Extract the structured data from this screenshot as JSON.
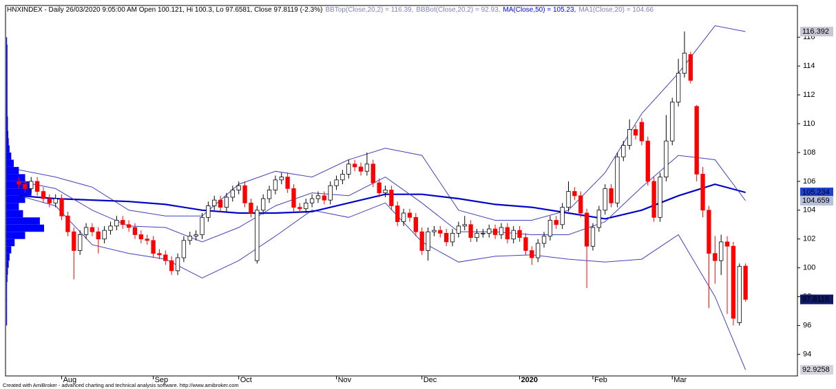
{
  "chart_data": {
    "type": "candlestick",
    "title": "HNXINDEX - Daily 26/03/2020 9:05:00 AM Open 100.121, Hi 100.3, Lo 97.6581, Close 97.8119 (-2.3%)",
    "footer": "Created with AmiBroker - advanced charting and technical analysis software. http://www.amibroker.com",
    "up_color": "#ffffff",
    "down_color": "#ff0000",
    "outline_color": "#000000",
    "open": [
      106.0,
      105.8,
      105.5,
      106.0,
      105.3,
      104.8,
      104.5,
      104.8,
      103.6,
      102.5,
      101.2,
      102.3,
      102.8,
      102.5,
      102.0,
      102.6,
      102.9,
      103.3,
      103.0,
      102.8,
      102.3,
      102.0,
      101.9,
      101.0,
      100.9,
      100.5,
      99.8,
      100.7,
      101.9,
      102.2,
      102.3,
      103.5,
      104.3,
      104.7,
      104.2,
      104.9,
      105.4,
      105.7,
      104.5,
      100.5,
      104.0,
      104.8,
      105.4,
      106.1,
      106.3,
      105.5,
      104.2,
      104.1,
      104.5,
      104.8,
      105.0,
      104.7,
      105.7,
      106.1,
      106.5,
      107.2,
      107.0,
      106.7,
      107.2,
      105.9,
      105.2,
      105.4,
      104.3,
      103.2,
      103.8,
      103.5,
      102.5,
      101.2,
      102.5,
      102.6,
      102.4,
      101.8,
      102.4,
      102.9,
      103.0,
      102.1,
      102.4,
      102.4,
      102.7,
      102.3,
      102.8,
      102.0,
      102.6,
      102.1,
      101.2,
      100.7,
      101.7,
      102.2,
      103.3,
      103.0,
      104.2,
      105.3,
      105.0,
      103.8,
      101.5,
      102.8,
      104.0,
      105.5,
      104.5,
      107.7,
      108.5,
      109.6,
      110.1,
      108.8,
      106.0,
      103.5,
      106.3,
      108.8,
      111.5,
      113.5,
      114.8,
      111.2,
      106.5,
      104.0,
      101.0,
      100.5,
      101.8,
      101.5,
      96.2,
      100.121
    ],
    "high": [
      106.3,
      106.1,
      106.3,
      106.3,
      105.6,
      105.1,
      105.1,
      105.1,
      103.9,
      102.8,
      102.6,
      103.1,
      103.1,
      102.8,
      102.9,
      103.2,
      103.6,
      103.6,
      103.3,
      103.1,
      102.6,
      102.3,
      102.2,
      101.3,
      101.2,
      100.8,
      101.0,
      102.2,
      102.5,
      102.6,
      103.8,
      104.6,
      105.0,
      105.0,
      105.2,
      105.7,
      106.0,
      106.0,
      104.8,
      104.3,
      105.1,
      105.7,
      106.4,
      106.6,
      106.6,
      105.8,
      104.5,
      104.8,
      105.1,
      105.3,
      105.3,
      106.0,
      106.4,
      106.8,
      107.5,
      107.5,
      107.3,
      108.0,
      107.5,
      106.2,
      105.7,
      105.7,
      104.6,
      104.1,
      104.1,
      103.8,
      102.8,
      102.8,
      102.9,
      102.9,
      102.7,
      102.7,
      103.2,
      103.6,
      103.3,
      102.7,
      102.7,
      103.0,
      103.0,
      103.1,
      103.1,
      102.9,
      102.9,
      102.4,
      101.5,
      102.0,
      102.5,
      103.6,
      103.6,
      104.5,
      106.0,
      105.6,
      105.3,
      104.1,
      103.1,
      104.3,
      105.8,
      105.8,
      108.0,
      108.8,
      110.3,
      109.9,
      110.4,
      109.1,
      106.3,
      106.6,
      110.6,
      111.8,
      114.5,
      116.4,
      115.0,
      111.3,
      107.0,
      104.3,
      102.2,
      102.3,
      102.2,
      101.8,
      100.3,
      100.3
    ],
    "low": [
      105.5,
      105.2,
      105.2,
      105.0,
      104.5,
      104.2,
      104.2,
      103.3,
      102.2,
      99.2,
      100.9,
      102.0,
      102.2,
      101.0,
      101.7,
      102.3,
      102.6,
      102.7,
      102.5,
      102.0,
      101.7,
      101.6,
      100.7,
      100.6,
      100.2,
      99.5,
      99.5,
      100.4,
      101.6,
      101.9,
      102.0,
      103.2,
      104.0,
      103.9,
      103.9,
      104.6,
      105.1,
      104.2,
      103.5,
      100.3,
      103.7,
      104.5,
      105.1,
      105.8,
      105.2,
      103.9,
      103.8,
      103.8,
      104.2,
      104.5,
      104.4,
      104.4,
      105.4,
      105.8,
      106.2,
      106.7,
      106.4,
      106.4,
      105.6,
      104.9,
      104.9,
      104.0,
      102.9,
      102.9,
      103.2,
      102.2,
      100.9,
      100.5,
      102.2,
      102.1,
      101.5,
      101.5,
      102.1,
      102.6,
      101.8,
      101.8,
      102.1,
      102.1,
      102.0,
      102.0,
      101.7,
      101.7,
      101.8,
      100.9,
      100.2,
      100.4,
      101.4,
      101.9,
      102.7,
      102.7,
      103.9,
      104.7,
      103.5,
      98.6,
      101.2,
      102.5,
      103.7,
      104.2,
      104.2,
      107.4,
      108.2,
      108.9,
      108.5,
      105.7,
      103.2,
      103.2,
      106.0,
      108.5,
      111.2,
      113.2,
      112.8,
      106.0,
      103.5,
      97.2,
      98.9,
      99.5,
      96.8,
      96.0,
      96.0,
      97.6581
    ],
    "close": [
      105.8,
      105.5,
      106.0,
      105.3,
      104.8,
      104.5,
      104.8,
      103.6,
      102.5,
      101.2,
      102.3,
      102.8,
      102.5,
      102.0,
      102.6,
      102.9,
      103.3,
      103.0,
      102.8,
      102.3,
      102.0,
      101.9,
      101.0,
      100.9,
      100.5,
      99.8,
      100.7,
      101.9,
      102.2,
      102.3,
      103.5,
      104.3,
      104.7,
      104.2,
      104.9,
      105.4,
      105.7,
      104.5,
      103.8,
      104.0,
      104.8,
      105.4,
      106.1,
      106.3,
      105.5,
      104.2,
      104.1,
      104.5,
      104.8,
      105.0,
      104.7,
      105.7,
      106.1,
      106.5,
      107.2,
      107.0,
      106.7,
      107.2,
      105.9,
      105.2,
      105.4,
      104.3,
      103.2,
      103.8,
      103.5,
      102.5,
      101.2,
      102.5,
      102.6,
      102.4,
      101.8,
      102.4,
      102.9,
      103.0,
      102.1,
      102.4,
      102.4,
      102.7,
      102.3,
      102.8,
      102.0,
      102.6,
      102.1,
      101.2,
      100.7,
      101.7,
      102.2,
      103.3,
      103.0,
      104.2,
      105.3,
      105.0,
      103.8,
      101.5,
      102.8,
      104.0,
      105.5,
      104.5,
      107.7,
      108.5,
      109.6,
      109.2,
      108.8,
      106.0,
      103.5,
      106.3,
      108.8,
      111.5,
      113.5,
      114.9,
      113.0,
      106.5,
      104.0,
      101.0,
      100.5,
      101.8,
      101.5,
      96.5,
      100.1,
      97.8119
    ],
    "line_x": [
      0,
      6,
      12,
      18,
      24,
      30,
      36,
      42,
      48,
      54,
      60,
      66,
      72,
      78,
      84,
      90,
      96,
      102,
      108,
      114,
      119
    ],
    "series": [
      {
        "name": "BBTop(Close,20,2) = 116.39,",
        "color": "#8080c0",
        "line_color": "#4040c0",
        "width": 1,
        "values": [
          106.8,
          106.3,
          105.6,
          104.0,
          103.6,
          103.6,
          105.8,
          106.7,
          106.3,
          107.5,
          108.3,
          107.8,
          104.0,
          103.3,
          103.3,
          104.0,
          106.6,
          110.7,
          113.5,
          116.8,
          116.39
        ]
      },
      {
        "name": "BBBot(Close,20,2) = 92.93,",
        "color": "#8080c0",
        "line_color": "#4040c0",
        "width": 1,
        "values": [
          105.0,
          104.3,
          101.6,
          101.0,
          100.6,
          99.3,
          100.5,
          102.2,
          104.0,
          103.5,
          104.5,
          101.8,
          100.4,
          100.8,
          100.9,
          100.6,
          100.4,
          100.6,
          102.3,
          98.0,
          92.93
        ]
      },
      {
        "name": "MA(Close,50) = 105.23,",
        "color": "#0000ff",
        "line_color": "#0000c8",
        "width": 2.2,
        "values": [
          105.0,
          104.8,
          104.7,
          104.6,
          104.4,
          104.0,
          103.8,
          103.8,
          103.9,
          104.5,
          105.1,
          105.1,
          104.8,
          104.4,
          104.2,
          103.8,
          103.4,
          104.0,
          105.0,
          105.8,
          105.23
        ]
      },
      {
        "name": "MA1(Close,20) = 104.66",
        "color": "#8080c0",
        "line_color": "#4040c0",
        "width": 1,
        "values": [
          106.0,
          105.5,
          104.0,
          102.9,
          102.8,
          101.8,
          102.8,
          104.3,
          105.2,
          105.0,
          106.3,
          104.5,
          102.5,
          102.5,
          102.3,
          102.3,
          103.2,
          105.6,
          107.8,
          107.5,
          104.66
        ]
      }
    ],
    "volume_profile": {
      "color": "#0000ff",
      "prices": [
        96,
        96.5,
        97,
        97.5,
        98,
        98.5,
        99,
        99.5,
        100,
        100.5,
        101,
        101.5,
        102,
        102.5,
        103,
        103.5,
        104,
        104.5,
        105,
        105.5,
        106,
        106.5,
        107,
        107.5,
        108,
        108.5,
        109,
        109.5,
        110,
        110.5,
        111,
        111.5,
        112,
        112.5,
        113,
        113.5,
        114,
        114.5,
        115,
        115.5
      ],
      "values": [
        2,
        2,
        2,
        2,
        2,
        2,
        3,
        4,
        6,
        8,
        12,
        20,
        45,
        90,
        80,
        40,
        30,
        45,
        60,
        55,
        45,
        30,
        18,
        12,
        8,
        6,
        5,
        4,
        4,
        3,
        3,
        3,
        3,
        3,
        3,
        3,
        3,
        3,
        3,
        2
      ]
    },
    "price_labels": [
      116.392,
      105.234,
      104.659,
      97.8119,
      92.9258
    ],
    "price_label_colors": [
      {
        "bg": "#c8c8d4",
        "fg": "#000000"
      },
      {
        "bg": "#2040d0",
        "fg": "#ffffff"
      },
      {
        "bg": "#b8c0dc",
        "fg": "#000000"
      },
      {
        "bg": "#101868",
        "fg": "#ffffff"
      },
      {
        "bg": "#d4d4dc",
        "fg": "#000000"
      }
    ],
    "xlim": [
      -2.2,
      127.5
    ],
    "xticks": [
      {
        "value": 7,
        "label": "Aug"
      },
      {
        "value": 22,
        "label": "Sep"
      },
      {
        "value": 36,
        "label": "Oct"
      },
      {
        "value": 52,
        "label": "Nov"
      },
      {
        "value": 66,
        "label": "Dec"
      },
      {
        "value": 82,
        "label": "2020"
      },
      {
        "value": 94,
        "label": "Feb"
      },
      {
        "value": 107,
        "label": "Mar"
      }
    ],
    "ylim": [
      92.5,
      118.2
    ],
    "yticks": [
      94,
      96,
      98,
      100,
      102,
      104,
      106,
      108,
      110,
      112,
      114,
      116
    ]
  }
}
